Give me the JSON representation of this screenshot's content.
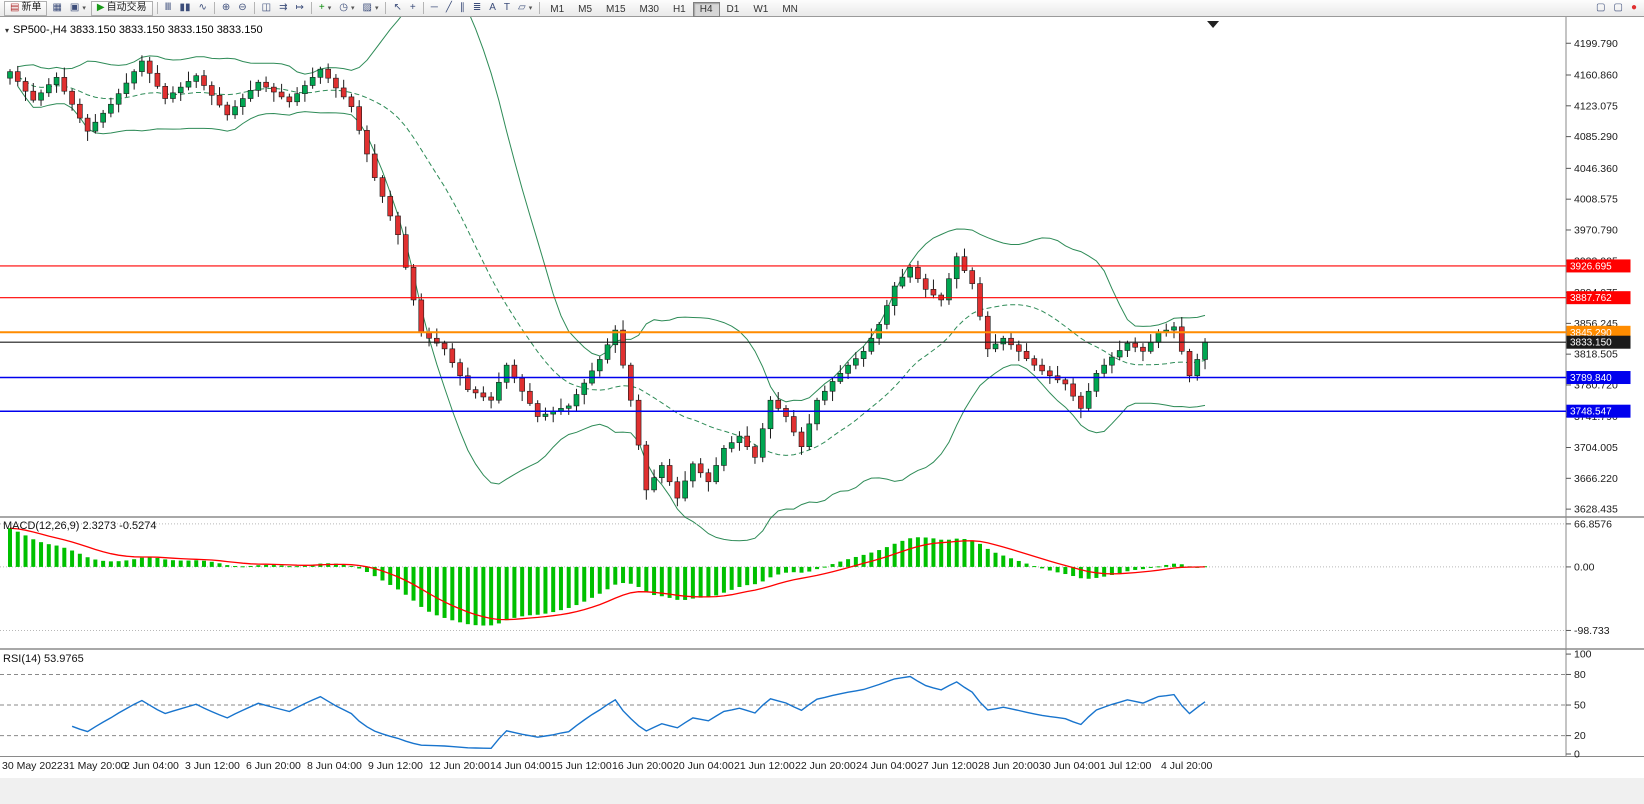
{
  "toolbar": {
    "items": [
      {
        "t": "btn",
        "name": "new-order-icon",
        "g": "▤",
        "c": "#b03030",
        "label": "新单"
      },
      {
        "t": "icon",
        "name": "new-chart-icon",
        "g": "▦"
      },
      {
        "t": "icon",
        "name": "profiles-icon",
        "g": "▣",
        "dd": true
      },
      {
        "t": "btn",
        "name": "auto-trading-icon",
        "g": "▶",
        "c": "#1a9a1a",
        "label": "自动交易"
      },
      {
        "t": "sep"
      },
      {
        "t": "icon",
        "name": "chart-bars-icon",
        "g": "Ⅲ"
      },
      {
        "t": "icon",
        "name": "chart-candles-icon",
        "g": "▮▮"
      },
      {
        "t": "icon",
        "name": "chart-line-icon",
        "g": "∿"
      },
      {
        "t": "sep"
      },
      {
        "t": "icon",
        "name": "zoom-in-icon",
        "g": "⊕"
      },
      {
        "t": "icon",
        "name": "zoom-out-icon",
        "g": "⊖"
      },
      {
        "t": "sep"
      },
      {
        "t": "icon",
        "name": "tile-windows-icon",
        "g": "◫"
      },
      {
        "t": "icon",
        "name": "auto-scroll-icon",
        "g": "⇉"
      },
      {
        "t": "icon",
        "name": "chart-shift-icon",
        "g": "↦"
      },
      {
        "t": "sep"
      },
      {
        "t": "icon",
        "name": "indicators-icon",
        "g": "+",
        "c": "#0a8a0a",
        "dd": true
      },
      {
        "t": "icon",
        "name": "periods-icon",
        "g": "◷",
        "dd": true
      },
      {
        "t": "icon",
        "name": "templates-icon",
        "g": "▨",
        "dd": true
      },
      {
        "t": "sep"
      },
      {
        "t": "icon",
        "name": "cursor-icon",
        "g": "↖"
      },
      {
        "t": "icon",
        "name": "crosshair-icon",
        "g": "+"
      },
      {
        "t": "sep"
      },
      {
        "t": "icon",
        "name": "horizontal-line-icon",
        "g": "─"
      },
      {
        "t": "icon",
        "name": "trendline-icon",
        "g": "╱"
      },
      {
        "t": "icon",
        "name": "equidistant-channel-icon",
        "g": "∥"
      },
      {
        "t": "icon",
        "name": "fibonacci-icon",
        "g": "≣"
      },
      {
        "t": "icon",
        "name": "text-icon",
        "g": "A"
      },
      {
        "t": "icon",
        "name": "text-label-icon",
        "g": "T"
      },
      {
        "t": "icon",
        "name": "arrows-icon",
        "g": "▱",
        "dd": true
      },
      {
        "t": "sep"
      },
      {
        "t": "tf"
      },
      {
        "t": "spacer"
      },
      {
        "t": "icon",
        "name": "window-icon",
        "g": "▢"
      },
      {
        "t": "icon",
        "name": "window-2-icon",
        "g": "▢"
      },
      {
        "t": "icon",
        "name": "record-icon",
        "g": "●",
        "c": "#e03030"
      }
    ],
    "timeframes": [
      "M1",
      "M5",
      "M15",
      "M30",
      "H1",
      "H4",
      "D1",
      "W1",
      "MN"
    ],
    "active_timeframe": "H4"
  },
  "chart": {
    "header": "SP500-,H4 3833.150 3833.150 3833.150 3833.150",
    "macd_label": "MACD(12,26,9) 2.3273 -0.5274",
    "rsi_label": "RSI(14) 53.9765"
  },
  "chart_data": {
    "type": "candlestick",
    "symbol": "SP500-",
    "period": "H4",
    "data_note": "closes estimated from pixels; open = previous close; wicks synthesized",
    "closes": [
      4165,
      4153,
      4141,
      4130,
      4139,
      4149,
      4158,
      4141,
      4125,
      4108,
      4092,
      4103,
      4114,
      4125,
      4138,
      4151,
      4165,
      4178,
      4163,
      4147,
      4132,
      4139,
      4146,
      4153,
      4160,
      4148,
      4136,
      4124,
      4112,
      4122,
      4132,
      4142,
      4152,
      4146,
      4140,
      4134,
      4128,
      4138,
      4148,
      4158,
      4168,
      4157,
      4145,
      4134,
      4122,
      4093,
      4064,
      4035,
      4012,
      3988,
      3965,
      3925,
      3885,
      3845,
      3838,
      3832,
      3825,
      3808,
      3792,
      3775,
      3771,
      3766,
      3762,
      3784,
      3805,
      3789,
      3773,
      3758,
      3742,
      3745,
      3748,
      3752,
      3755,
      3769,
      3783,
      3798,
      3812,
      3830,
      3848,
      3805,
      3762,
      3707,
      3652,
      3667,
      3682,
      3662,
      3642,
      3663,
      3684,
      3673,
      3662,
      3682,
      3703,
      3710,
      3718,
      3705,
      3692,
      3727,
      3762,
      3752,
      3742,
      3723,
      3705,
      3733,
      3762,
      3773,
      3785,
      3795,
      3805,
      3813,
      3822,
      3838,
      3855,
      3878,
      3902,
      3913,
      3925,
      3911,
      3898,
      3891,
      3885,
      3911,
      3938,
      3921,
      3905,
      3865,
      3825,
      3831,
      3838,
      3830,
      3822,
      3813,
      3805,
      3798,
      3792,
      3787,
      3782,
      3767,
      3752,
      3773,
      3795,
      3805,
      3815,
      3823,
      3832,
      3827,
      3822,
      3833,
      3845,
      3848,
      3852,
      3822,
      3792,
      3812,
      3833.15
    ],
    "last_quote": "3833.150",
    "ylim": [
      3620,
      4232
    ],
    "price_axis_ticks": [
      "4199.790",
      "4160.860",
      "4123.075",
      "4085.290",
      "4046.360",
      "4008.575",
      "3970.790",
      "3933.005",
      "3894.075",
      "3856.245",
      "3818.505",
      "3780.720",
      "3741.790",
      "3704.005",
      "3666.220",
      "3628.435"
    ],
    "horizontal_lines": [
      {
        "price": 3926.695,
        "label": "3926.695",
        "color": "#ff0000",
        "width": 1.2
      },
      {
        "price": 3887.762,
        "label": "3887.762",
        "color": "#ff0000",
        "width": 1.2
      },
      {
        "price": 3845.29,
        "label": "3845.290",
        "color": "#ff8c00",
        "width": 2
      },
      {
        "price": 3833.15,
        "label": "3833.150",
        "color": "#1a1a1a",
        "width": 1.2,
        "current_price": true
      },
      {
        "price": 3789.84,
        "label": "3789.840",
        "color": "#0000ee",
        "width": 1.5
      },
      {
        "price": 3748.547,
        "label": "3748.547",
        "color": "#0000ee",
        "width": 1.5
      }
    ],
    "bollinger": {
      "period": 20,
      "deviation": 2,
      "color": "#2e8b57"
    },
    "macd": {
      "fast": 12,
      "slow": 26,
      "signal_period": 9,
      "value": "2.3273",
      "signal_value": "-0.5274",
      "axis_ticks": [
        "66.8576",
        "0.00",
        "-98.733"
      ],
      "ylim": [
        -126,
        76
      ],
      "hist_color": "#00c000",
      "signal_color": "#ff0000"
    },
    "rsi": {
      "period": 14,
      "value": "53.9765",
      "axis_ticks": [
        "100",
        "80",
        "50",
        "20",
        "0"
      ],
      "level_lines": [
        80,
        50,
        20
      ],
      "ylim": [
        0,
        104
      ],
      "color": "#1874cd"
    },
    "time_axis_labels": [
      "30 May 2022",
      "31 May 20:00",
      "2 Jun 04:00",
      "3 Jun 12:00",
      "6 Jun 20:00",
      "8 Jun 04:00",
      "9 Jun 12:00",
      "12 Jun 20:00",
      "14 Jun 04:00",
      "15 Jun 12:00",
      "16 Jun 20:00",
      "20 Jun 04:00",
      "21 Jun 12:00",
      "22 Jun 20:00",
      "24 Jun 04:00",
      "27 Jun 12:00",
      "28 Jun 20:00",
      "30 Jun 04:00",
      "1 Jul 12:00",
      "4 Jul 20:00"
    ],
    "candle_colors": {
      "up": "#00a651",
      "down": "#e03030",
      "outline": "#1a1a1a"
    }
  }
}
